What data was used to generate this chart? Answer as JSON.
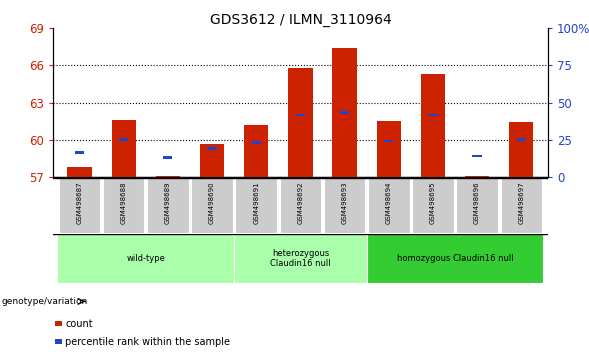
{
  "title": "GDS3612 / ILMN_3110964",
  "samples": [
    "GSM498687",
    "GSM498688",
    "GSM498689",
    "GSM498690",
    "GSM498691",
    "GSM498692",
    "GSM498693",
    "GSM498694",
    "GSM498695",
    "GSM498696",
    "GSM498697"
  ],
  "red_values": [
    57.8,
    61.6,
    57.1,
    59.7,
    61.2,
    65.8,
    67.4,
    61.5,
    65.3,
    57.1,
    61.4
  ],
  "blue_values": [
    59.0,
    60.0,
    58.6,
    59.3,
    59.8,
    62.0,
    62.2,
    59.9,
    62.0,
    58.7,
    60.0
  ],
  "ymin": 57,
  "ymax": 69,
  "yticks": [
    57,
    60,
    63,
    66,
    69
  ],
  "right_yticks": [
    0,
    25,
    50,
    75,
    100
  ],
  "right_yticklabels": [
    "0",
    "25",
    "50",
    "75",
    "100%"
  ],
  "group_data": [
    {
      "start": 0,
      "end": 3,
      "label": "wild-type",
      "color": "#aaffaa"
    },
    {
      "start": 4,
      "end": 6,
      "label": "heterozygous\nClaudin16 null",
      "color": "#aaffaa"
    },
    {
      "start": 7,
      "end": 10,
      "label": "homozygous Claudin16 null",
      "color": "#33cc33"
    }
  ],
  "bar_color": "#cc2200",
  "blue_color": "#2244cc",
  "bar_width": 0.55,
  "left_label_color": "#cc2200",
  "right_label_color": "#2244cc",
  "grid_dotted_at": [
    60,
    63,
    66
  ],
  "sample_bg_color": "#cccccc",
  "genotype_label": "genotype/variation"
}
